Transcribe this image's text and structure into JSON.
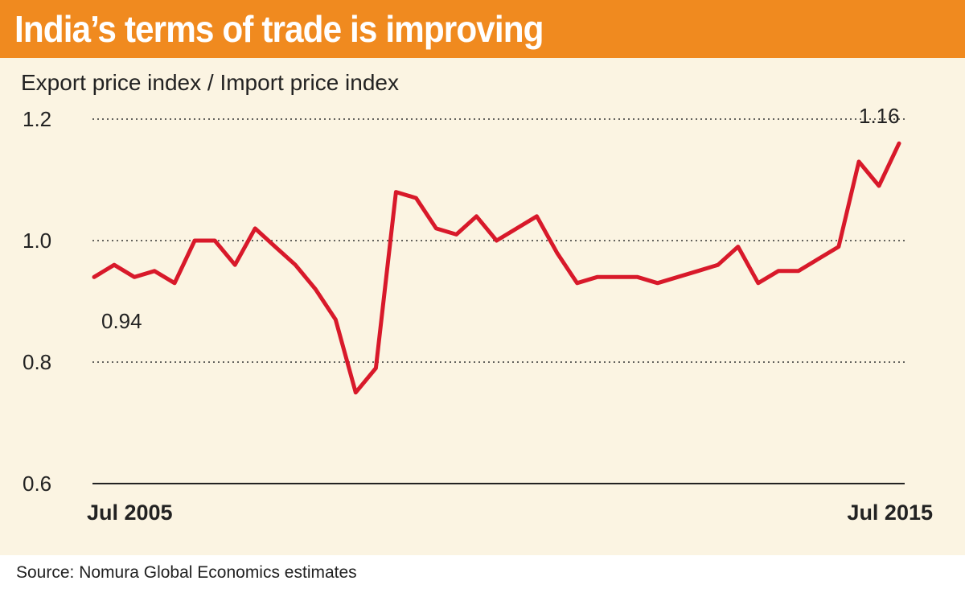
{
  "header": {
    "title": "India’s terms of trade is improving"
  },
  "chart_data": {
    "type": "line",
    "title": "India’s terms of trade is improving",
    "ylabel": "Export price index / Import price index",
    "ylim": [
      0.6,
      1.2
    ],
    "yticks": [
      "1.2",
      "1.0",
      "0.8",
      "0.6"
    ],
    "ytick_values": [
      1.2,
      1.0,
      0.8,
      0.6
    ],
    "x_start_label": "Jul 2005",
    "x_end_label": "Jul 2015",
    "x": [
      "Jul 2005",
      "Oct 2005",
      "Jan 2006",
      "Apr 2006",
      "Jul 2006",
      "Oct 2006",
      "Jan 2007",
      "Apr 2007",
      "Jul 2007",
      "Oct 2007",
      "Jan 2008",
      "Apr 2008",
      "Jul 2008",
      "Oct 2008",
      "Jan 2009",
      "Apr 2009",
      "Jul 2009",
      "Oct 2009",
      "Jan 2010",
      "Apr 2010",
      "Jul 2010",
      "Oct 2010",
      "Jan 2011",
      "Apr 2011",
      "Jul 2011",
      "Oct 2011",
      "Jan 2012",
      "Apr 2012",
      "Jul 2012",
      "Oct 2012",
      "Jan 2013",
      "Apr 2013",
      "Jul 2013",
      "Oct 2013",
      "Jan 2014",
      "Apr 2014",
      "Jul 2014",
      "Oct 2014",
      "Jan 2015",
      "Apr 2015",
      "Jul 2015"
    ],
    "grid": true,
    "annotations": [
      "0.94",
      "1.16"
    ],
    "series": [
      {
        "color": "#d8192a",
        "values": [
          0.94,
          0.96,
          0.94,
          0.95,
          0.93,
          1.0,
          1.0,
          0.96,
          1.02,
          0.99,
          0.96,
          0.92,
          0.87,
          0.75,
          0.79,
          1.08,
          1.07,
          1.02,
          1.01,
          1.04,
          1.0,
          1.02,
          1.04,
          0.98,
          0.93,
          0.94,
          0.94,
          0.94,
          0.93,
          0.94,
          0.95,
          0.96,
          0.99,
          0.93,
          0.95,
          0.95,
          0.97,
          0.99,
          1.13,
          1.09,
          1.16
        ]
      }
    ]
  },
  "footer": {
    "source": "Source: Nomura Global Economics estimates"
  }
}
